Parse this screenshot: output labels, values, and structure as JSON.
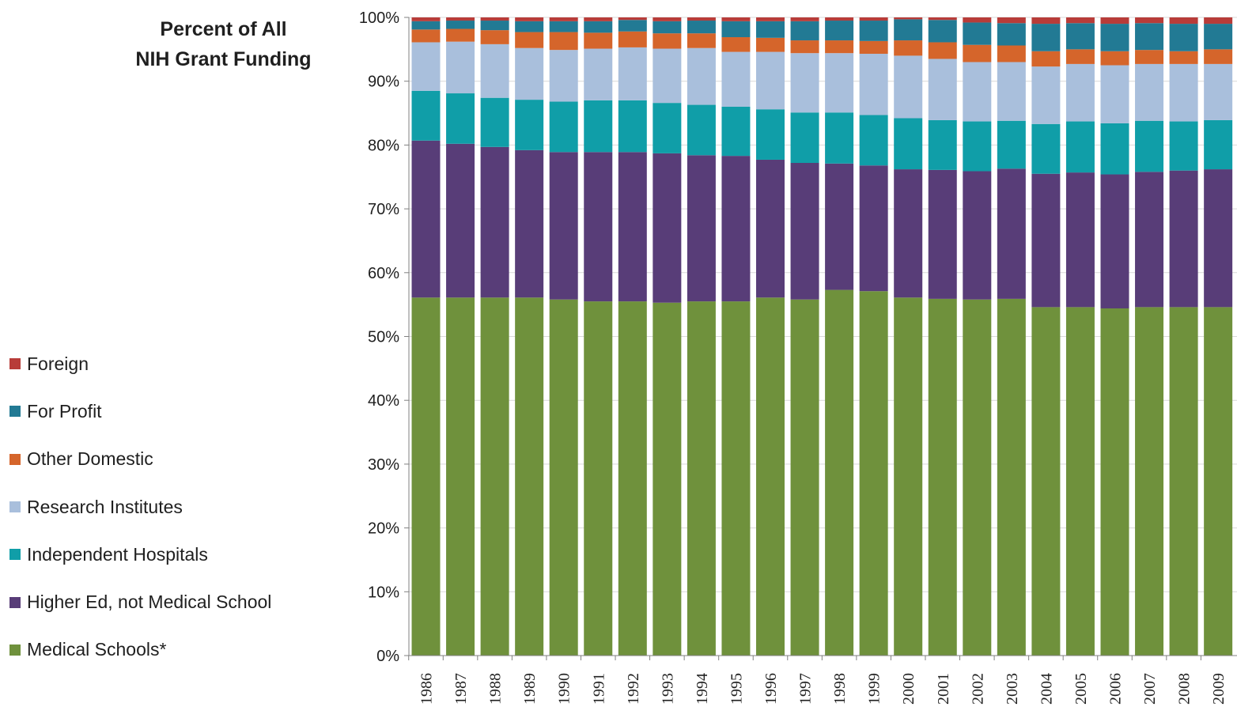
{
  "chart_title": [
    "Percent of All",
    "NIH Grant Funding"
  ],
  "chart_data": {
    "type": "bar",
    "stacked": true,
    "title": "Percent of All NIH Grant Funding",
    "xlabel": "",
    "ylabel": "",
    "ylim": [
      0,
      100
    ],
    "y_ticks": [
      "0%",
      "10%",
      "20%",
      "30%",
      "40%",
      "50%",
      "60%",
      "70%",
      "80%",
      "90%",
      "100%"
    ],
    "grid": true,
    "legend_position": "left",
    "categories": [
      "1986",
      "1987",
      "1988",
      "1989",
      "1990",
      "1991",
      "1992",
      "1993",
      "1994",
      "1995",
      "1996",
      "1997",
      "1998",
      "1999",
      "2000",
      "2001",
      "2002",
      "2003",
      "2004",
      "2005",
      "2006",
      "2007",
      "2008",
      "2009"
    ],
    "series": [
      {
        "name": "Medical Schools*",
        "color": "#6f913c",
        "values": [
          56.1,
          56.1,
          56.1,
          56.1,
          55.8,
          55.5,
          55.5,
          55.3,
          55.5,
          55.5,
          56.1,
          55.8,
          57.3,
          57.1,
          56.1,
          55.9,
          55.8,
          55.9,
          54.6,
          54.6,
          54.4,
          54.6,
          54.6,
          54.6
        ]
      },
      {
        "name": "Higher Ed, not Medical School",
        "color": "#583d78",
        "values": [
          24.6,
          24.1,
          23.6,
          23.1,
          23.1,
          23.4,
          23.4,
          23.4,
          22.9,
          22.8,
          21.6,
          21.4,
          19.8,
          19.7,
          20.1,
          20.2,
          20.1,
          20.4,
          20.9,
          21.1,
          21.0,
          21.2,
          21.4,
          21.6
        ]
      },
      {
        "name": "Independent  Hospitals",
        "color": "#109ea8",
        "values": [
          7.8,
          7.9,
          7.7,
          7.9,
          7.9,
          8.1,
          8.1,
          7.9,
          7.9,
          7.7,
          7.9,
          7.9,
          8.0,
          7.9,
          8.0,
          7.8,
          7.8,
          7.5,
          7.8,
          8.0,
          8.0,
          8.0,
          7.7,
          7.7
        ]
      },
      {
        "name": "Research Institutes",
        "color": "#a9bfdc",
        "values": [
          7.6,
          8.1,
          8.4,
          8.1,
          8.1,
          8.1,
          8.3,
          8.5,
          8.9,
          8.6,
          9.0,
          9.3,
          9.3,
          9.6,
          9.8,
          9.6,
          9.3,
          9.2,
          9.0,
          9.0,
          9.1,
          8.9,
          9.0,
          8.8
        ]
      },
      {
        "name": "Other Domestic",
        "color": "#d5652b",
        "values": [
          2.0,
          2.0,
          2.2,
          2.5,
          2.8,
          2.5,
          2.5,
          2.4,
          2.3,
          2.3,
          2.2,
          2.0,
          2.0,
          2.0,
          2.4,
          2.6,
          2.7,
          2.6,
          2.4,
          2.3,
          2.2,
          2.2,
          2.0,
          2.3
        ]
      },
      {
        "name": "For Profit",
        "color": "#227a94",
        "values": [
          1.3,
          1.3,
          1.5,
          1.7,
          1.7,
          1.8,
          1.8,
          1.9,
          2.0,
          2.5,
          2.6,
          3.0,
          3.1,
          3.2,
          3.3,
          3.5,
          3.5,
          3.5,
          4.3,
          4.1,
          4.3,
          4.2,
          4.3,
          4.0
        ]
      },
      {
        "name": "Foreign",
        "color": "#b83c39",
        "values": [
          0.6,
          0.5,
          0.5,
          0.6,
          0.6,
          0.6,
          0.4,
          0.6,
          0.5,
          0.6,
          0.6,
          0.6,
          0.5,
          0.5,
          0.3,
          0.4,
          0.8,
          0.9,
          1.0,
          0.9,
          1.0,
          0.9,
          1.0,
          1.0
        ]
      }
    ]
  }
}
